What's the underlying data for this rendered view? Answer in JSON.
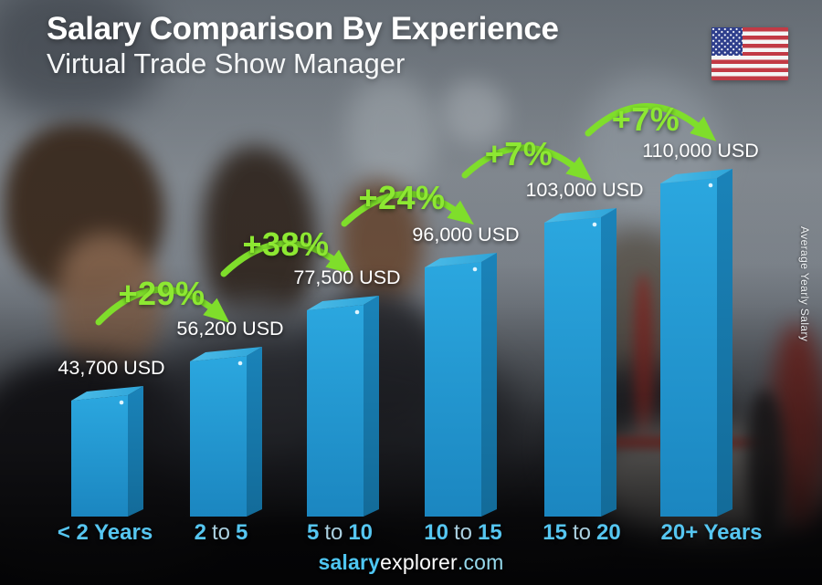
{
  "header": {
    "title": "Salary Comparison By Experience",
    "subtitle": "Virtual Trade Show Manager"
  },
  "flag": {
    "name": "united-states-flag"
  },
  "footer": {
    "brand_bold": "salary",
    "brand_regular": "explorer",
    "brand_suffix": ".com"
  },
  "chart_data": {
    "type": "bar",
    "title": "Salary Comparison By Experience",
    "subtitle": "Virtual Trade Show Manager",
    "ylabel": "Average Yearly Salary",
    "unit": "USD",
    "categories": [
      "< 2 Years",
      "2 to 5",
      "5 to 10",
      "10 to 15",
      "15 to 20",
      "20+ Years"
    ],
    "values": [
      43700,
      56200,
      77500,
      96000,
      103000,
      110000
    ],
    "value_labels": [
      "43,700 USD",
      "56,200 USD",
      "77,500 USD",
      "96,000 USD",
      "103,000 USD",
      "110,000 USD"
    ],
    "pct_increase_labels": [
      "+29%",
      "+38%",
      "+24%",
      "+7%",
      "+7%"
    ],
    "categories_parts": [
      {
        "b1": "< 2 Years",
        "mid": "",
        "b2": ""
      },
      {
        "b1": "2",
        "mid": "to",
        "b2": "5"
      },
      {
        "b1": "5",
        "mid": "to",
        "b2": "10"
      },
      {
        "b1": "10",
        "mid": "to",
        "b2": "15"
      },
      {
        "b1": "15",
        "mid": "to",
        "b2": "20"
      },
      {
        "b1": "20+ Years",
        "mid": "",
        "b2": ""
      }
    ],
    "ylim": [
      0,
      110000
    ],
    "grid": false,
    "legend": false,
    "colors": {
      "bar_front": "#1e9ad6",
      "bar_top": "#45b8e6",
      "bar_side": "#1678ab",
      "arrow_green": "#7fde2b",
      "pct_text_green": "#8de832",
      "axis_label_blue": "#56c6f1",
      "value_text": "#ffffff"
    }
  }
}
